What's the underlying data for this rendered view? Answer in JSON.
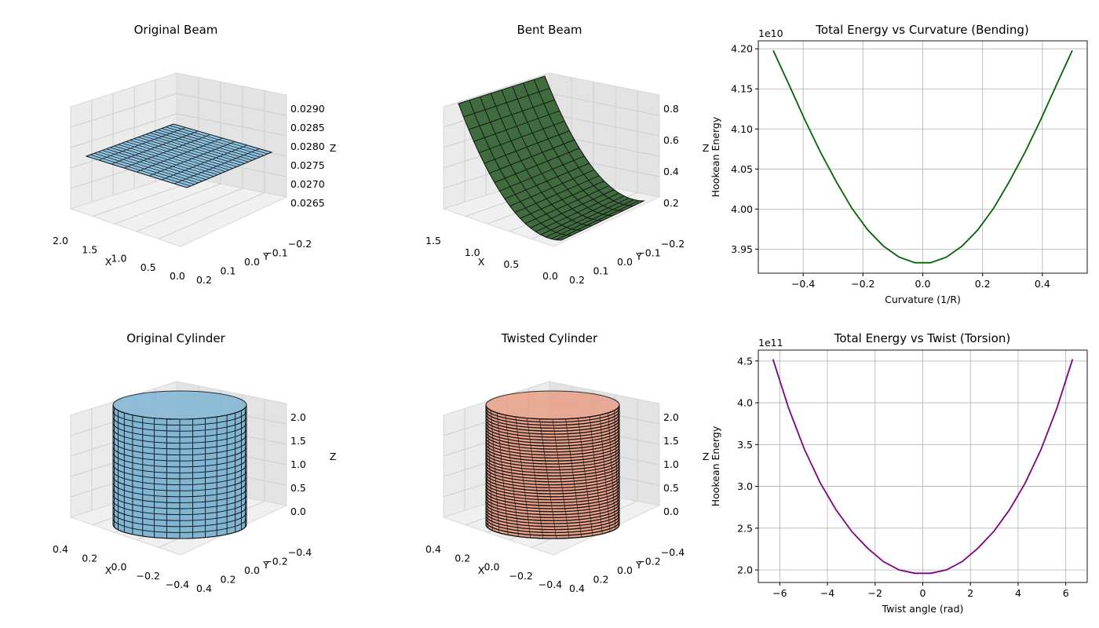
{
  "chart_data": [
    {
      "type": "surface3d",
      "title": "Original Beam",
      "xlabel": "X",
      "ylabel": "Y",
      "zlabel": "Z",
      "x_ticks": [
        "2.0",
        "1.5",
        "1.0",
        "0.5",
        "0.0"
      ],
      "y_ticks": [
        "0.2",
        "0.1",
        "0.0",
        "−0.1",
        "−0.2"
      ],
      "z_ticks": [
        "0.0290",
        "0.0285",
        "0.0280",
        "0.0275",
        "0.0270",
        "0.0265"
      ],
      "x_range": [
        0,
        2
      ],
      "y_range": [
        -0.2,
        0.2
      ],
      "z_value": 0.0275,
      "surface_color": "#8fc6e6"
    },
    {
      "type": "surface3d",
      "title": "Bent Beam",
      "xlabel": "X",
      "ylabel": "Y",
      "zlabel": "Z",
      "x_ticks": [
        "1.5",
        "1.0",
        "0.5",
        "0.0"
      ],
      "y_ticks": [
        "0.2",
        "0.1",
        "0.0",
        "−0.1",
        "−0.2"
      ],
      "z_ticks": [
        "0.8",
        "0.6",
        "0.4",
        "0.2"
      ],
      "x_range": [
        0,
        1.8
      ],
      "y_range": [
        -0.2,
        0.2
      ],
      "z_range": [
        0,
        0.9
      ],
      "surface_color": "#3f6b3f"
    },
    {
      "type": "line",
      "title": "Total Energy vs Curvature (Bending)",
      "xlabel": "Curvature (1/R)",
      "ylabel": "Hookean Energy",
      "offset_label": "1e10",
      "color": "#006400",
      "xlim": [
        -0.55,
        0.55
      ],
      "ylim": [
        3.92,
        4.21
      ],
      "x_ticks": [
        -0.4,
        -0.2,
        0.0,
        0.2,
        0.4
      ],
      "x_tick_labels": [
        "−0.4",
        "−0.2",
        "0.0",
        "0.2",
        "0.4"
      ],
      "y_ticks": [
        3.95,
        4.0,
        4.05,
        4.1,
        4.15,
        4.2
      ],
      "y_tick_labels": [
        "3.95",
        "4.00",
        "4.05",
        "4.10",
        "4.15",
        "4.20"
      ],
      "grid": true,
      "x": [
        -0.5,
        -0.447,
        -0.395,
        -0.342,
        -0.289,
        -0.237,
        -0.184,
        -0.132,
        -0.079,
        -0.026,
        0.026,
        0.079,
        0.132,
        0.184,
        0.237,
        0.289,
        0.342,
        0.395,
        0.447,
        0.5
      ],
      "y": [
        4.198,
        4.155,
        4.112,
        4.071,
        4.034,
        4.001,
        3.974,
        3.954,
        3.94,
        3.933,
        3.933,
        3.94,
        3.954,
        3.974,
        4.001,
        4.034,
        4.071,
        4.112,
        4.155,
        4.198
      ]
    },
    {
      "type": "surface3d",
      "title": "Original Cylinder",
      "xlabel": "X",
      "ylabel": "Y",
      "zlabel": "Z",
      "x_ticks": [
        "0.4",
        "0.2",
        "0.0",
        "−0.2",
        "−0.4"
      ],
      "y_ticks": [
        "0.4",
        "0.2",
        "0.0",
        "−0.2",
        "−0.4"
      ],
      "z_ticks": [
        "2.0",
        "1.5",
        "1.0",
        "0.5",
        "0.0"
      ],
      "radius": 0.5,
      "z_range": [
        0,
        2
      ],
      "surface_color": "#7fb6d4"
    },
    {
      "type": "surface3d",
      "title": "Twisted Cylinder",
      "xlabel": "X",
      "ylabel": "Y",
      "zlabel": "Z",
      "x_ticks": [
        "0.4",
        "0.2",
        "0.0",
        "−0.2",
        "−0.4"
      ],
      "y_ticks": [
        "0.4",
        "0.2",
        "0.0",
        "−0.2",
        "−0.4"
      ],
      "z_ticks": [
        "2.0",
        "1.5",
        "1.0",
        "0.5",
        "0.0"
      ],
      "radius": 0.5,
      "z_range": [
        0,
        2
      ],
      "surface_color": "#e8a088"
    },
    {
      "type": "line",
      "title": "Total Energy vs Twist (Torsion)",
      "xlabel": "Twist angle (rad)",
      "ylabel": "Hookean Energy",
      "offset_label": "1e11",
      "color": "#800080",
      "xlim": [
        -6.9,
        6.9
      ],
      "ylim": [
        1.85,
        4.63
      ],
      "x_ticks": [
        -6,
        -4,
        -2,
        0,
        2,
        4,
        6
      ],
      "x_tick_labels": [
        "−6",
        "−4",
        "−2",
        "0",
        "2",
        "4",
        "6"
      ],
      "y_ticks": [
        2.0,
        2.5,
        3.0,
        3.5,
        4.0,
        4.5
      ],
      "y_tick_labels": [
        "2.0",
        "2.5",
        "3.0",
        "3.5",
        "4.0",
        "4.5"
      ],
      "grid": true,
      "x": [
        -6.283,
        -5.622,
        -4.96,
        -4.299,
        -3.638,
        -2.976,
        -2.315,
        -1.653,
        -0.992,
        -0.331,
        0.331,
        0.992,
        1.653,
        2.315,
        2.976,
        3.638,
        4.299,
        4.96,
        5.622,
        6.283
      ],
      "y": [
        4.52,
        3.93,
        3.44,
        3.04,
        2.72,
        2.46,
        2.26,
        2.1,
        2.0,
        1.96,
        1.96,
        2.0,
        2.1,
        2.26,
        2.46,
        2.72,
        3.04,
        3.44,
        3.93,
        4.52
      ]
    }
  ]
}
